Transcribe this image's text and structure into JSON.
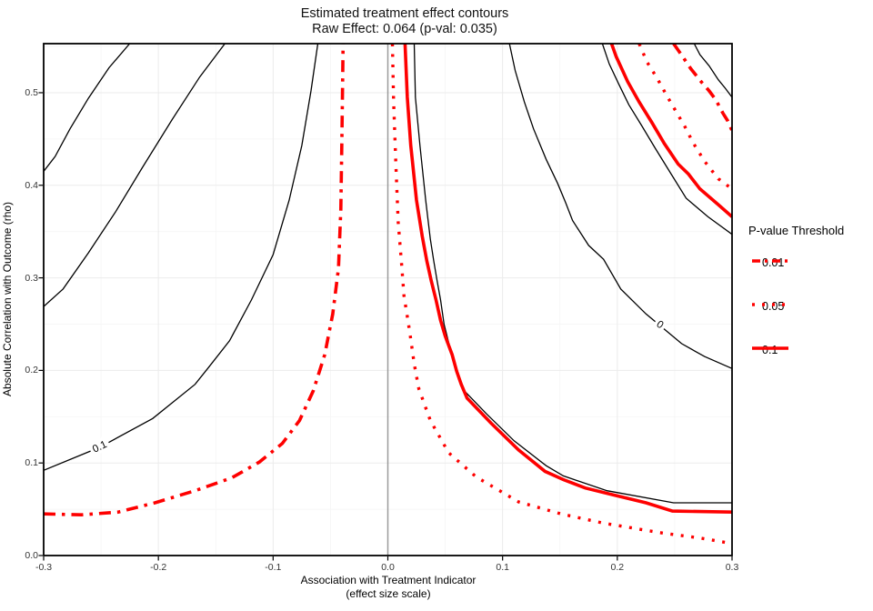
{
  "title": {
    "line1": "Estimated treatment effect contours",
    "line2": "Raw Effect: 0.064 (p-val: 0.035)"
  },
  "axes": {
    "x": {
      "label_line1": "Association with Treatment Indicator",
      "label_line2": "(effect size scale)",
      "ticks": [
        -0.3,
        -0.2,
        -0.1,
        0.0,
        0.1,
        0.2,
        0.3
      ],
      "tick_labels": [
        "-0.3",
        "-0.2",
        "-0.1",
        "0.0",
        "0.1",
        "0.2",
        "0.3"
      ]
    },
    "y": {
      "label": "Absolute Correlation with Outcome (rho)",
      "ticks": [
        0.0,
        0.1,
        0.2,
        0.3,
        0.4,
        0.5
      ],
      "tick_labels": [
        "0.0",
        "0.1",
        "0.2",
        "0.3",
        "0.4",
        "0.5"
      ]
    }
  },
  "legend": {
    "title": "P-value Threshold",
    "items": [
      {
        "label": "0.01",
        "style": "dashdot"
      },
      {
        "label": "0.05",
        "style": "dotted"
      },
      {
        "label": "0.1",
        "style": "solid"
      }
    ]
  },
  "colors": {
    "pvalue_line": "#fe0000",
    "effect_contour": "#000000",
    "zero_reference": "#9a9a9a",
    "grid_major": "#ebebeb",
    "grid_minor": "#f5f5f5",
    "panel_border": "#000000"
  },
  "chart_data": {
    "type": "line",
    "subtype": "contour",
    "title": "Estimated treatment effect contours",
    "subtitle": "Raw Effect: 0.064 (p-val: 0.035)",
    "xlabel": "Association with Treatment Indicator (effect size scale)",
    "ylabel": "Absolute Correlation with Outcome (rho)",
    "xlim": [
      -0.3,
      0.3
    ],
    "ylim": [
      0,
      0.553
    ],
    "grid": true,
    "legend_position": "right",
    "zero_reference_line_x": 0,
    "effect_contours": [
      {
        "name": "effect-contour-left-upper",
        "points": [
          [
            -0.225,
            0.553
          ],
          [
            -0.243,
            0.527
          ],
          [
            -0.261,
            0.494
          ],
          [
            -0.277,
            0.461
          ],
          [
            -0.29,
            0.431
          ],
          [
            -0.3,
            0.415
          ]
        ]
      },
      {
        "name": "effect-contour-left-middle",
        "points": [
          [
            -0.142,
            0.553
          ],
          [
            -0.164,
            0.517
          ],
          [
            -0.188,
            0.471
          ],
          [
            -0.214,
            0.419
          ],
          [
            -0.237,
            0.372
          ],
          [
            -0.261,
            0.327
          ],
          [
            -0.283,
            0.288
          ],
          [
            -0.3,
            0.269
          ]
        ]
      },
      {
        "name": "effect-contour-0.1",
        "label": "0.1",
        "points": [
          [
            -0.061,
            0.553
          ],
          [
            -0.067,
            0.502
          ],
          [
            -0.075,
            0.443
          ],
          [
            -0.086,
            0.384
          ],
          [
            -0.1,
            0.325
          ],
          [
            -0.119,
            0.276
          ],
          [
            -0.138,
            0.232
          ],
          [
            -0.157,
            0.202
          ],
          [
            -0.168,
            0.185
          ],
          [
            -0.205,
            0.148
          ],
          [
            -0.251,
            0.117
          ],
          [
            -0.3,
            0.092
          ]
        ]
      },
      {
        "name": "effect-contour-center-right",
        "points": [
          [
            0.023,
            0.553
          ],
          [
            0.024,
            0.495
          ],
          [
            0.028,
            0.443
          ],
          [
            0.033,
            0.384
          ],
          [
            0.037,
            0.342
          ],
          [
            0.04,
            0.318
          ],
          [
            0.043,
            0.296
          ],
          [
            0.046,
            0.276
          ],
          [
            0.049,
            0.25
          ],
          [
            0.053,
            0.23
          ],
          [
            0.057,
            0.21
          ],
          [
            0.061,
            0.194
          ],
          [
            0.065,
            0.18
          ],
          [
            0.086,
            0.153
          ],
          [
            0.11,
            0.124
          ],
          [
            0.138,
            0.097
          ],
          [
            0.153,
            0.086
          ],
          [
            0.191,
            0.07
          ],
          [
            0.249,
            0.057
          ],
          [
            0.3,
            0.057
          ]
        ]
      },
      {
        "name": "effect-contour-0",
        "label": "0",
        "points": [
          [
            0.106,
            0.553
          ],
          [
            0.111,
            0.524
          ],
          [
            0.119,
            0.49
          ],
          [
            0.127,
            0.461
          ],
          [
            0.138,
            0.428
          ],
          [
            0.148,
            0.402
          ],
          [
            0.155,
            0.381
          ],
          [
            0.161,
            0.362
          ],
          [
            0.175,
            0.335
          ],
          [
            0.188,
            0.32
          ],
          [
            0.203,
            0.288
          ],
          [
            0.225,
            0.261
          ],
          [
            0.256,
            0.229
          ],
          [
            0.276,
            0.215
          ],
          [
            0.3,
            0.202
          ]
        ]
      },
      {
        "name": "effect-contour-corner-outer",
        "points": [
          [
            0.187,
            0.553
          ],
          [
            0.193,
            0.531
          ],
          [
            0.201,
            0.51
          ],
          [
            0.21,
            0.487
          ],
          [
            0.221,
            0.465
          ],
          [
            0.233,
            0.44
          ],
          [
            0.247,
            0.412
          ],
          [
            0.26,
            0.386
          ],
          [
            0.279,
            0.366
          ],
          [
            0.3,
            0.347
          ]
        ]
      },
      {
        "name": "effect-contour-corner-inner",
        "points": [
          [
            0.267,
            0.553
          ],
          [
            0.272,
            0.541
          ],
          [
            0.28,
            0.529
          ],
          [
            0.288,
            0.514
          ],
          [
            0.294,
            0.505
          ],
          [
            0.3,
            0.495
          ]
        ]
      }
    ],
    "contour_labels": [
      {
        "text": "0.1",
        "x": -0.251,
        "rho": 0.117,
        "angle": -25
      },
      {
        "text": "0",
        "x": 0.237,
        "rho": 0.249,
        "angle": 35
      }
    ],
    "pvalue_curves": [
      {
        "threshold": "0.01",
        "style": "dashdot",
        "branch": "left",
        "points": [
          [
            -0.3,
            0.045
          ],
          [
            -0.267,
            0.044
          ],
          [
            -0.235,
            0.047
          ],
          [
            -0.203,
            0.057
          ],
          [
            -0.168,
            0.07
          ],
          [
            -0.136,
            0.084
          ],
          [
            -0.112,
            0.101
          ],
          [
            -0.092,
            0.121
          ],
          [
            -0.077,
            0.146
          ],
          [
            -0.065,
            0.178
          ],
          [
            -0.055,
            0.217
          ],
          [
            -0.048,
            0.261
          ],
          [
            -0.043,
            0.31
          ],
          [
            -0.041,
            0.374
          ],
          [
            -0.04,
            0.453
          ],
          [
            -0.039,
            0.553
          ]
        ]
      },
      {
        "threshold": "0.01",
        "style": "dashdot",
        "branch": "top-right",
        "points": [
          [
            0.249,
            0.553
          ],
          [
            0.257,
            0.539
          ],
          [
            0.264,
            0.526
          ],
          [
            0.273,
            0.512
          ],
          [
            0.28,
            0.502
          ],
          [
            0.286,
            0.492
          ],
          [
            0.292,
            0.478
          ],
          [
            0.296,
            0.47
          ],
          [
            0.3,
            0.459
          ]
        ]
      },
      {
        "threshold": "0.05",
        "style": "dotted",
        "branch": "right",
        "points": [
          [
            0.004,
            0.553
          ],
          [
            0.005,
            0.492
          ],
          [
            0.007,
            0.423
          ],
          [
            0.009,
            0.36
          ],
          [
            0.012,
            0.315
          ],
          [
            0.014,
            0.281
          ],
          [
            0.019,
            0.242
          ],
          [
            0.023,
            0.207
          ],
          [
            0.027,
            0.18
          ],
          [
            0.037,
            0.146
          ],
          [
            0.053,
            0.111
          ],
          [
            0.077,
            0.085
          ],
          [
            0.114,
            0.058
          ],
          [
            0.151,
            0.045
          ],
          [
            0.188,
            0.035
          ],
          [
            0.241,
            0.024
          ],
          [
            0.272,
            0.019
          ],
          [
            0.3,
            0.013
          ]
        ]
      },
      {
        "threshold": "0.05",
        "style": "dotted",
        "branch": "top-right",
        "points": [
          [
            0.219,
            0.553
          ],
          [
            0.226,
            0.533
          ],
          [
            0.235,
            0.515
          ],
          [
            0.243,
            0.497
          ],
          [
            0.251,
            0.48
          ],
          [
            0.259,
            0.463
          ],
          [
            0.266,
            0.446
          ],
          [
            0.276,
            0.426
          ],
          [
            0.288,
            0.407
          ],
          [
            0.3,
            0.396
          ]
        ]
      },
      {
        "threshold": "0.1",
        "style": "solid",
        "branch": "right",
        "points": [
          [
            0.015,
            0.553
          ],
          [
            0.017,
            0.495
          ],
          [
            0.02,
            0.443
          ],
          [
            0.025,
            0.384
          ],
          [
            0.03,
            0.345
          ],
          [
            0.034,
            0.318
          ],
          [
            0.038,
            0.296
          ],
          [
            0.042,
            0.276
          ],
          [
            0.046,
            0.254
          ],
          [
            0.05,
            0.237
          ],
          [
            0.056,
            0.217
          ],
          [
            0.06,
            0.199
          ],
          [
            0.064,
            0.185
          ],
          [
            0.069,
            0.17
          ],
          [
            0.09,
            0.143
          ],
          [
            0.114,
            0.114
          ],
          [
            0.137,
            0.091
          ],
          [
            0.153,
            0.082
          ],
          [
            0.172,
            0.073
          ],
          [
            0.198,
            0.065
          ],
          [
            0.225,
            0.057
          ],
          [
            0.248,
            0.048
          ],
          [
            0.3,
            0.047
          ]
        ]
      },
      {
        "threshold": "0.1",
        "style": "solid",
        "branch": "top-right",
        "points": [
          [
            0.195,
            0.553
          ],
          [
            0.199,
            0.539
          ],
          [
            0.209,
            0.512
          ],
          [
            0.219,
            0.49
          ],
          [
            0.23,
            0.468
          ],
          [
            0.241,
            0.445
          ],
          [
            0.253,
            0.423
          ],
          [
            0.262,
            0.412
          ],
          [
            0.272,
            0.396
          ],
          [
            0.288,
            0.379
          ],
          [
            0.3,
            0.366
          ]
        ]
      }
    ]
  }
}
